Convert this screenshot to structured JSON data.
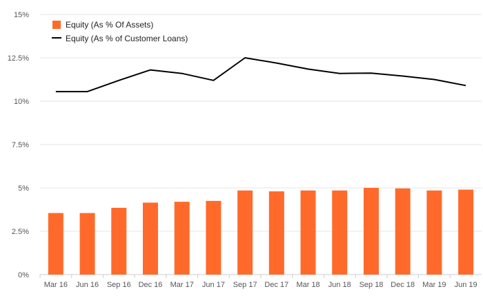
{
  "chart_data": {
    "type": "bar",
    "title": "",
    "xlabel": "",
    "ylabel": "",
    "categories": [
      "Mar 16",
      "Jun 16",
      "Sep 16",
      "Dec 16",
      "Mar 17",
      "Jun 17",
      "Sep 17",
      "Dec 17",
      "Mar 18",
      "Jun 18",
      "Sep 18",
      "Dec 18",
      "Mar 19",
      "Jun 19"
    ],
    "ylim": [
      0,
      15
    ],
    "yticks": [
      0,
      2.5,
      5,
      7.5,
      10,
      12.5,
      15
    ],
    "ytick_labels": [
      "0%",
      "2.5%",
      "5%",
      "7.5%",
      "10%",
      "12.5%",
      "15%"
    ],
    "grid": true,
    "legend_position": "top-left",
    "series": [
      {
        "name": "Equity (As % Of Assets)",
        "type": "bar",
        "color": "#ff6a2b",
        "values": [
          3.55,
          3.55,
          3.85,
          4.15,
          4.2,
          4.25,
          4.85,
          4.8,
          4.85,
          4.85,
          5.0,
          4.97,
          4.85,
          4.9
        ]
      },
      {
        "name": "Equity (As % of Customer Loans)",
        "type": "line",
        "color": "#000000",
        "values": [
          10.55,
          10.55,
          11.2,
          11.8,
          11.6,
          11.2,
          12.5,
          12.2,
          11.85,
          11.6,
          11.62,
          11.45,
          11.25,
          10.9
        ]
      }
    ]
  }
}
